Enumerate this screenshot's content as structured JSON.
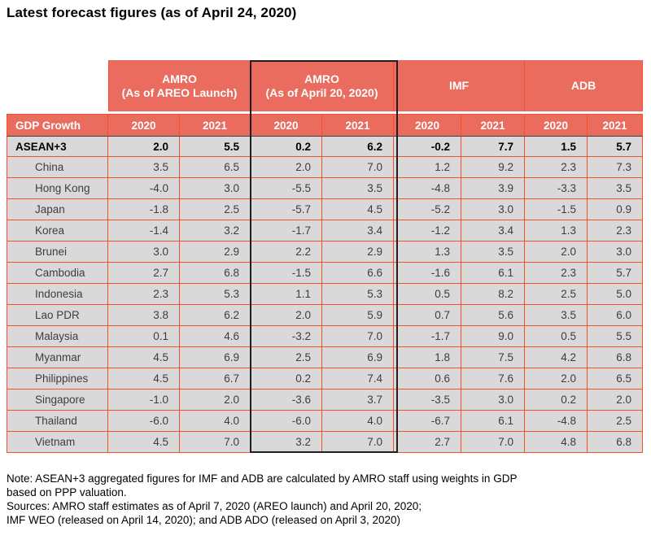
{
  "title": "Latest forecast figures (as of April 24, 2020)",
  "colors": {
    "header_fill": "#E96C5F",
    "grid_border": "#F4502C",
    "cell_fill": "#D9D9D9",
    "header_text": "#FFFFFF",
    "highlight_box_border": "#1F1F1F"
  },
  "table": {
    "row_header_label": "GDP Growth",
    "groups": [
      {
        "key": "amro-areo",
        "line1": "AMRO",
        "line2": "(As of AREO Launch)",
        "years": [
          "2020",
          "2021"
        ],
        "highlighted": false
      },
      {
        "key": "amro-apr20",
        "line1": "AMRO",
        "line2": "(As of April 20, 2020)",
        "years": [
          "2020",
          "2021"
        ],
        "highlighted": true
      },
      {
        "key": "imf",
        "line1": "IMF",
        "line2": "",
        "years": [
          "2020",
          "2021"
        ],
        "highlighted": false
      },
      {
        "key": "adb",
        "line1": "ADB",
        "line2": "",
        "years": [
          "2020",
          "2021"
        ],
        "highlighted": false
      }
    ],
    "rows": [
      {
        "label": "ASEAN+3",
        "bold": true,
        "values": [
          "2.0",
          "5.5",
          "0.2",
          "6.2",
          "-0.2",
          "7.7",
          "1.5",
          "5.7"
        ]
      },
      {
        "label": "China",
        "bold": false,
        "values": [
          "3.5",
          "6.5",
          "2.0",
          "7.0",
          "1.2",
          "9.2",
          "2.3",
          "7.3"
        ]
      },
      {
        "label": "Hong Kong",
        "bold": false,
        "values": [
          "-4.0",
          "3.0",
          "-5.5",
          "3.5",
          "-4.8",
          "3.9",
          "-3.3",
          "3.5"
        ]
      },
      {
        "label": "Japan",
        "bold": false,
        "values": [
          "-1.8",
          "2.5",
          "-5.7",
          "4.5",
          "-5.2",
          "3.0",
          "-1.5",
          "0.9"
        ]
      },
      {
        "label": "Korea",
        "bold": false,
        "values": [
          "-1.4",
          "3.2",
          "-1.7",
          "3.4",
          "-1.2",
          "3.4",
          "1.3",
          "2.3"
        ]
      },
      {
        "label": "Brunei",
        "bold": false,
        "values": [
          "3.0",
          "2.9",
          "2.2",
          "2.9",
          "1.3",
          "3.5",
          "2.0",
          "3.0"
        ]
      },
      {
        "label": "Cambodia",
        "bold": false,
        "values": [
          "2.7",
          "6.8",
          "-1.5",
          "6.6",
          "-1.6",
          "6.1",
          "2.3",
          "5.7"
        ]
      },
      {
        "label": "Indonesia",
        "bold": false,
        "values": [
          "2.3",
          "5.3",
          "1.1",
          "5.3",
          "0.5",
          "8.2",
          "2.5",
          "5.0"
        ]
      },
      {
        "label": "Lao PDR",
        "bold": false,
        "values": [
          "3.8",
          "6.2",
          "2.0",
          "5.9",
          "0.7",
          "5.6",
          "3.5",
          "6.0"
        ]
      },
      {
        "label": "Malaysia",
        "bold": false,
        "values": [
          "0.1",
          "4.6",
          "-3.2",
          "7.0",
          "-1.7",
          "9.0",
          "0.5",
          "5.5"
        ]
      },
      {
        "label": "Myanmar",
        "bold": false,
        "values": [
          "4.5",
          "6.9",
          "2.5",
          "6.9",
          "1.8",
          "7.5",
          "4.2",
          "6.8"
        ]
      },
      {
        "label": "Philippines",
        "bold": false,
        "values": [
          "4.5",
          "6.7",
          "0.2",
          "7.4",
          "0.6",
          "7.6",
          "2.0",
          "6.5"
        ]
      },
      {
        "label": "Singapore",
        "bold": false,
        "values": [
          "-1.0",
          "2.0",
          "-3.6",
          "3.7",
          "-3.5",
          "3.0",
          "0.2",
          "2.0"
        ]
      },
      {
        "label": "Thailand",
        "bold": false,
        "values": [
          "-6.0",
          "4.0",
          "-6.0",
          "4.0",
          "-6.7",
          "6.1",
          "-4.8",
          "2.5"
        ]
      },
      {
        "label": "Vietnam",
        "bold": false,
        "values": [
          "4.5",
          "7.0",
          "3.2",
          "7.0",
          "2.7",
          "7.0",
          "4.8",
          "6.8"
        ]
      }
    ]
  },
  "notes": {
    "lines": [
      "Note: ASEAN+3 aggregated figures for IMF and ADB are calculated by AMRO staff using weights in GDP",
      "based on PPP valuation.",
      "Sources: AMRO staff estimates as of April 7, 2020 (AREO launch) and April 20, 2020;",
      "IMF WEO (released on April 14, 2020); and ADB ADO (released on April 3, 2020)"
    ]
  }
}
